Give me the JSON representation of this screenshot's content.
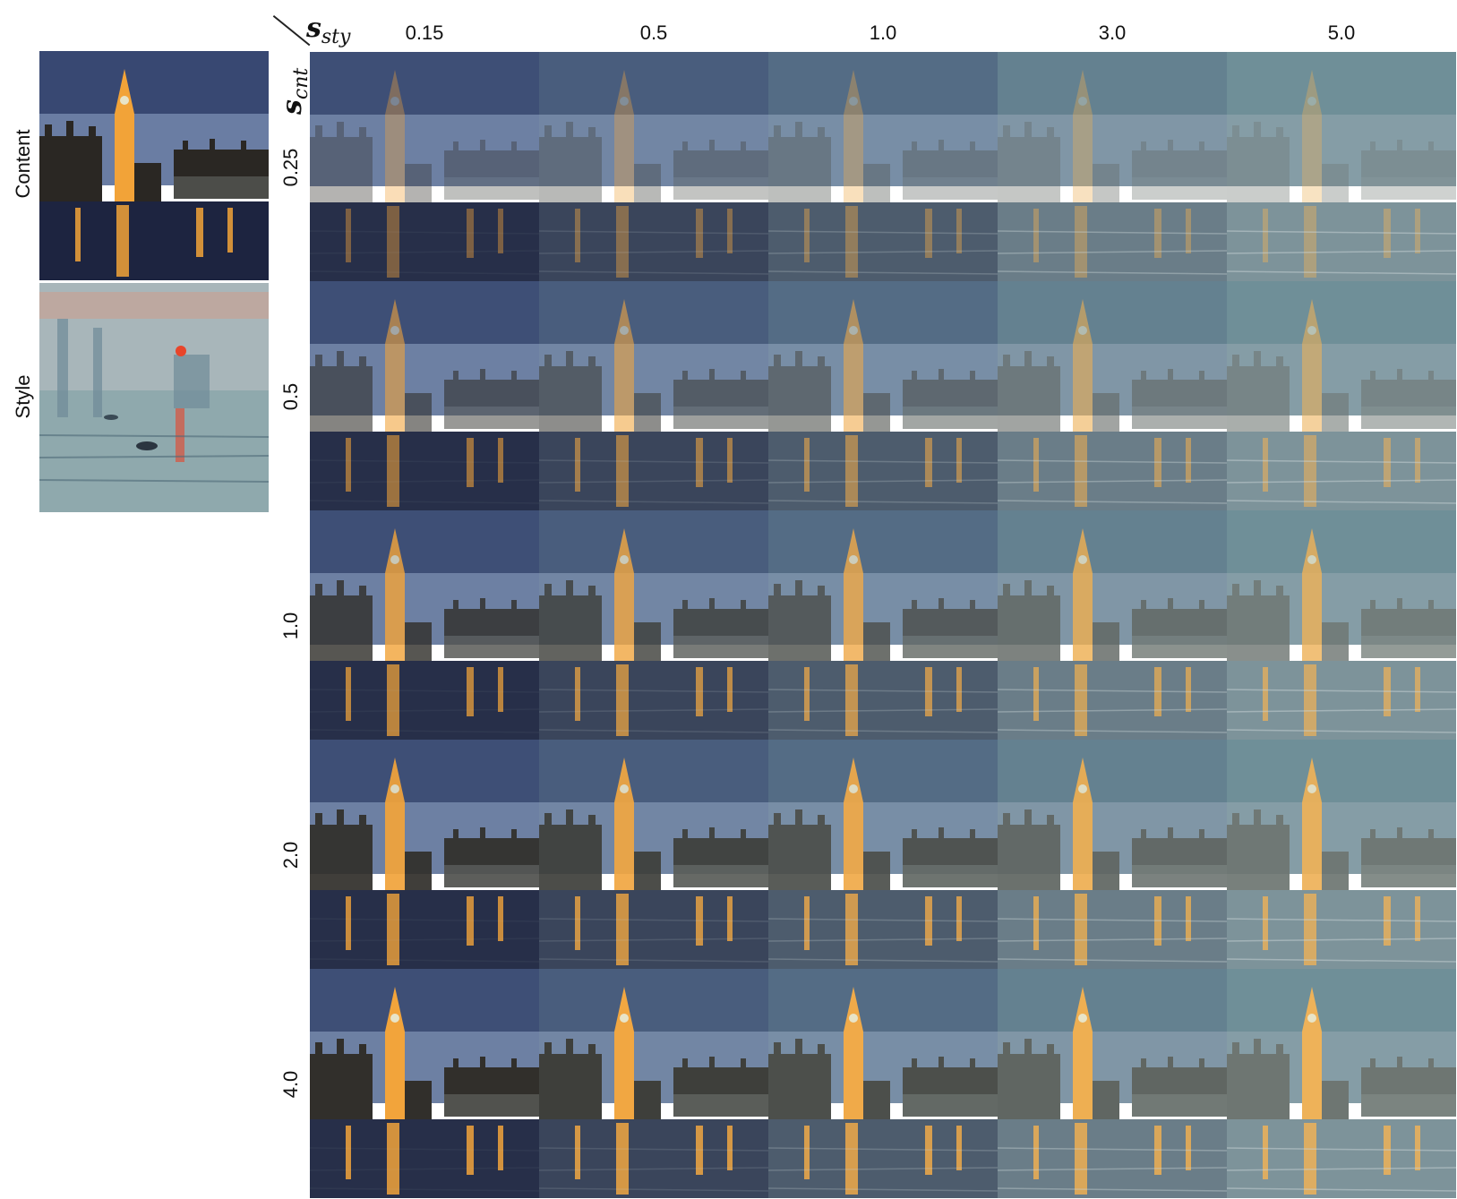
{
  "labels": {
    "content": "Content",
    "style": "Style",
    "sty_symbol": "s",
    "sty_sub": "sty",
    "cnt_symbol": "s",
    "cnt_sub": "cnt"
  },
  "columns": [
    "0.15",
    "0.5",
    "1.0",
    "3.0",
    "5.0"
  ],
  "rows": [
    "0.25",
    "0.5",
    "1.0",
    "2.0",
    "4.0"
  ],
  "palette": {
    "night_sky": "#1c2a55",
    "twilight": "#6b7fa8",
    "style_teal": "#6f8f98",
    "lights": "#f2a338",
    "sun": "#e8452a",
    "buildings": "#2a2723"
  }
}
